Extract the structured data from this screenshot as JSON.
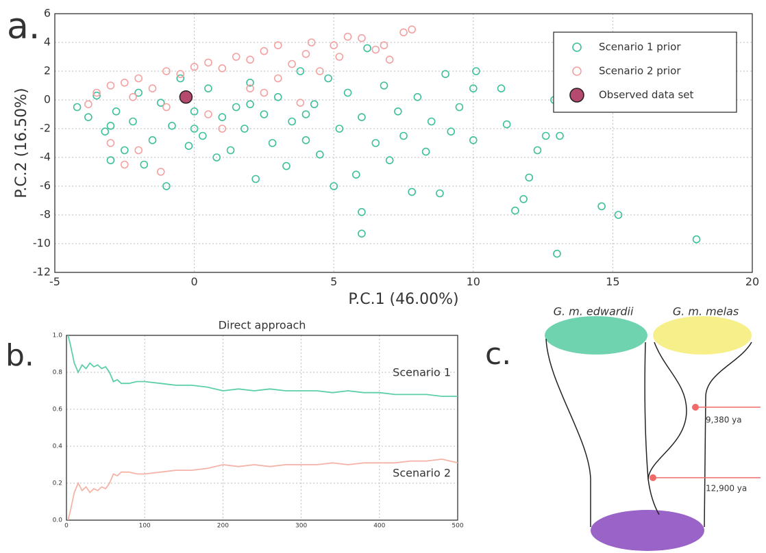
{
  "chart_data": [
    {
      "type": "scatter",
      "panel_label": "a.",
      "xlabel": "P.C.1 (46.00%)",
      "ylabel": "P.C.2 (16.50%)",
      "xlim": [
        -5,
        20
      ],
      "ylim": [
        -12,
        6
      ],
      "xticks": [
        -5,
        0,
        5,
        10,
        15,
        20
      ],
      "yticks": [
        -12,
        -10,
        -8,
        -6,
        -4,
        -2,
        0,
        2,
        4,
        6
      ],
      "grid": true,
      "legend": "upper right",
      "series": [
        {
          "name": "Scenario 1 prior",
          "color": "#3cbf9b",
          "marker": "hollow",
          "x": [
            -4.2,
            -3.8,
            -3.5,
            -3.2,
            -3,
            -2.8,
            -2.5,
            -2.2,
            -2,
            -1.8,
            -1.5,
            -1.2,
            -1,
            -0.8,
            -0.5,
            -0.2,
            0,
            0.3,
            0.5,
            0.8,
            1,
            1.3,
            1.5,
            1.8,
            2,
            2.2,
            2.5,
            2.8,
            3,
            3.3,
            3.5,
            3.8,
            4,
            4.3,
            4.5,
            4.8,
            5,
            5.2,
            5.5,
            5.8,
            6,
            6.2,
            6,
            6,
            6.5,
            6.8,
            7,
            7.3,
            7.5,
            7.8,
            8,
            8.3,
            8.5,
            8.8,
            9,
            9.2,
            9.5,
            10,
            10.1,
            10,
            11,
            11.2,
            11.5,
            11.8,
            12,
            12.3,
            12.6,
            12.9,
            13.1,
            13,
            14.6,
            15.2,
            18,
            4,
            2,
            -3,
            0
          ],
          "values": [
            -0.5,
            -1.2,
            0.3,
            -2.2,
            -4.2,
            -0.8,
            -3.5,
            -1.5,
            0.5,
            -4.5,
            -2.8,
            -0.2,
            -6,
            -1.8,
            1.5,
            -3.2,
            -0.8,
            -2.5,
            0.8,
            -4,
            -1.2,
            -3.5,
            -0.5,
            -2,
            1.2,
            -5.5,
            -1,
            -3,
            0.2,
            -4.6,
            -1.5,
            2,
            -2.8,
            -0.3,
            -3.8,
            1.5,
            -6,
            -2,
            0.5,
            -5.2,
            -1.2,
            3.6,
            -7.8,
            -9.3,
            -3,
            1,
            -4.2,
            -0.8,
            -2.5,
            -6.4,
            0.2,
            -3.6,
            -1.5,
            -6.5,
            1.8,
            -2.2,
            -0.5,
            0.8,
            2,
            -2.8,
            0.8,
            -1.7,
            -7.7,
            -6.9,
            -5.4,
            -3.5,
            -2.5,
            0,
            -2.5,
            -10.7,
            -7.4,
            -8,
            -9.7,
            -1,
            -0.3,
            -1.8,
            -2
          ]
        },
        {
          "name": "Scenario 2 prior",
          "color": "#f4a0a0",
          "marker": "hollow",
          "x": [
            -3.5,
            -3,
            -2.5,
            -2,
            -1.5,
            -1,
            -0.5,
            0,
            0.5,
            1,
            1.5,
            2,
            2.5,
            3,
            3.5,
            4,
            4.5,
            5,
            5.5,
            5.2,
            6,
            6.5,
            7,
            7.5,
            7.8,
            6.8,
            4.2,
            3,
            2,
            1,
            -2,
            -2.5,
            -1.2,
            -3,
            0.5,
            2.5,
            -1,
            3.8,
            -3.8,
            -2.2
          ],
          "values": [
            0.5,
            1,
            1.2,
            1.5,
            0.8,
            2,
            1.8,
            2.3,
            2.6,
            2.2,
            3,
            2.8,
            3.4,
            3.8,
            2.5,
            3.2,
            2,
            3.8,
            4.4,
            3,
            4.3,
            3.5,
            2.8,
            4.7,
            4.9,
            3.8,
            4,
            1.5,
            0.8,
            -2,
            -3.5,
            -4.5,
            -5,
            -3,
            -1,
            0.5,
            -0.5,
            -0.2,
            -0.3,
            0.2
          ]
        },
        {
          "name": "Observed data set",
          "color": "#b5496f",
          "marker": "filled",
          "x": [
            -0.3
          ],
          "values": [
            0.2
          ]
        }
      ]
    },
    {
      "type": "line",
      "panel_label": "b.",
      "title": "Direct approach",
      "xlim": [
        0,
        500
      ],
      "ylim": [
        0,
        1
      ],
      "xticks": [
        0,
        100,
        200,
        300,
        400,
        500
      ],
      "yticks": [
        {
          "value": 0,
          "label": "0.0"
        },
        {
          "value": 0.2,
          "label": "0.2"
        },
        {
          "value": 0.4,
          "label": "0.4"
        },
        {
          "value": 0.6,
          "label": "0.6"
        },
        {
          "value": 0.8,
          "label": "0.8"
        },
        {
          "value": 1,
          "label": "1.0"
        }
      ],
      "grid": true,
      "x": [
        2,
        5,
        10,
        15,
        20,
        25,
        30,
        35,
        40,
        45,
        50,
        55,
        60,
        65,
        70,
        80,
        90,
        100,
        120,
        140,
        160,
        180,
        200,
        220,
        240,
        260,
        280,
        300,
        320,
        340,
        360,
        380,
        400,
        420,
        440,
        460,
        480,
        500
      ],
      "series": [
        {
          "name": "Scenario 1",
          "color": "#5ccfa8",
          "values": [
            1.0,
            0.95,
            0.85,
            0.8,
            0.84,
            0.82,
            0.85,
            0.83,
            0.84,
            0.82,
            0.83,
            0.8,
            0.75,
            0.76,
            0.74,
            0.74,
            0.75,
            0.75,
            0.74,
            0.73,
            0.73,
            0.72,
            0.7,
            0.71,
            0.7,
            0.71,
            0.7,
            0.7,
            0.7,
            0.69,
            0.7,
            0.69,
            0.69,
            0.68,
            0.68,
            0.68,
            0.67,
            0.67
          ]
        },
        {
          "name": "Scenario 2",
          "color": "#f5b3a8",
          "values": [
            0,
            0.05,
            0.15,
            0.2,
            0.16,
            0.18,
            0.15,
            0.17,
            0.16,
            0.18,
            0.17,
            0.2,
            0.25,
            0.24,
            0.26,
            0.26,
            0.25,
            0.25,
            0.26,
            0.27,
            0.27,
            0.28,
            0.3,
            0.29,
            0.3,
            0.29,
            0.3,
            0.3,
            0.3,
            0.31,
            0.3,
            0.31,
            0.31,
            0.31,
            0.32,
            0.32,
            0.33,
            0.31
          ]
        }
      ]
    }
  ],
  "diagram": {
    "panel_label": "c.",
    "populations": [
      "G. m. edwardii",
      "G. m. melas"
    ],
    "events": [
      "9,380 ya",
      "12,900 ya"
    ]
  }
}
